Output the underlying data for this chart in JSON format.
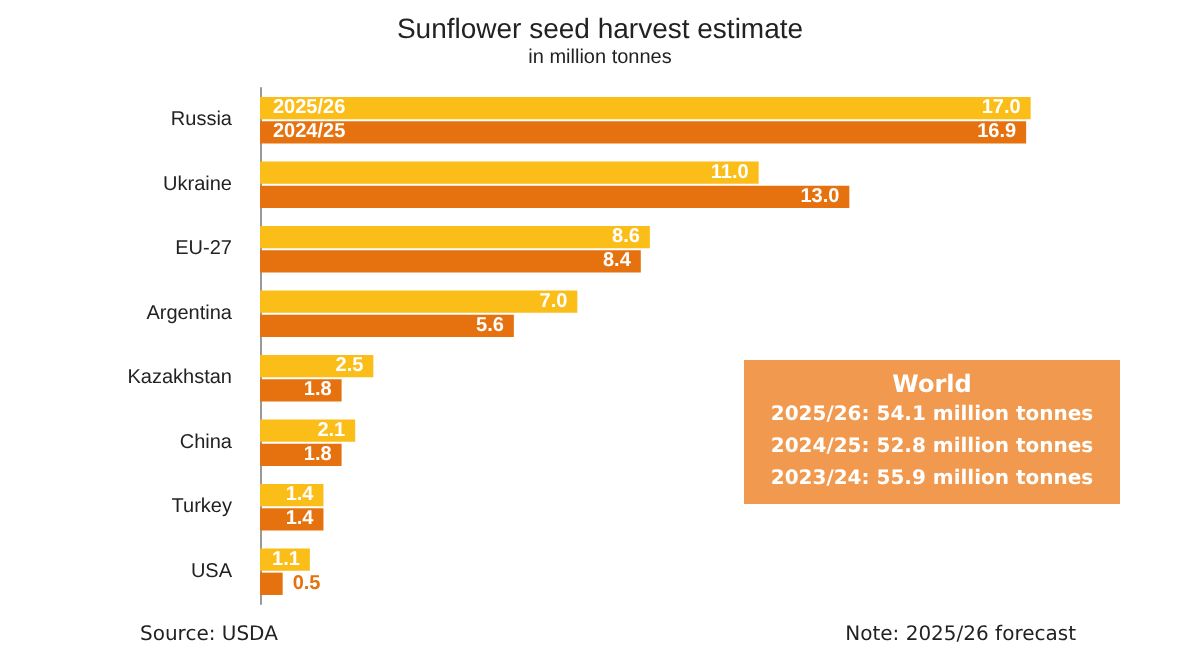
{
  "chart_data": {
    "type": "bar",
    "orientation": "horizontal",
    "title": "Sunflower seed harvest estimate",
    "subtitle": "in million tonnes",
    "categories": [
      "Russia",
      "Ukraine",
      "EU-27",
      "Argentina",
      "Kazakhstan",
      "China",
      "Turkey",
      "USA"
    ],
    "series": [
      {
        "name": "2025/26",
        "color": "#fbbd18",
        "values": [
          17.0,
          11.0,
          8.6,
          7.0,
          2.5,
          2.1,
          1.4,
          1.1
        ],
        "value_labels": [
          "17.0",
          "11.0",
          "8.6",
          "7.0",
          "2.5",
          "2.1",
          "1.4",
          "1.1"
        ]
      },
      {
        "name": "2024/25",
        "color": "#e5720e",
        "values": [
          16.9,
          13.0,
          8.4,
          5.6,
          1.8,
          1.8,
          1.4,
          0.5
        ],
        "value_labels": [
          "16.9",
          "13.0",
          "8.4",
          "5.6",
          "1.8",
          "1.8",
          "1.4",
          "0.5"
        ]
      }
    ],
    "legend": false,
    "annotations": [
      "Source: USDA",
      "Note: 2025/26 forecast",
      "World",
      "2025/26: 54.1 million tonnes",
      "2024/25: 52.8 million tonnes",
      "2023/24: 55.9 million tonnes"
    ]
  }
}
